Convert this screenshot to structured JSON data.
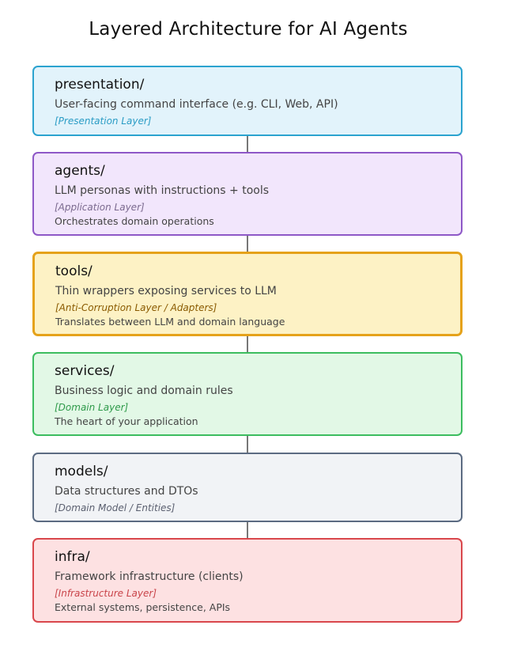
{
  "title": "Layered Architecture for AI Agents",
  "layers": [
    {
      "name": "presentation/",
      "description": "User-facing command interface (e.g. CLI, Web, API)",
      "tag": "[Presentation Layer]",
      "note": "",
      "border_color": "#2ba3cf",
      "fill_color": "#e2f3fb",
      "tag_color": "#2a9cc5"
    },
    {
      "name": "agents/",
      "description": "LLM personas with instructions + tools",
      "tag": "[Application Layer]",
      "note": "Orchestrates domain operations",
      "border_color": "#8e58c7",
      "fill_color": "#f2e6fc",
      "tag_color": "#7b6a8f"
    },
    {
      "name": "tools/",
      "description": "Thin wrappers exposing services to LLM",
      "tag": "[Anti-Corruption Layer / Adapters]",
      "note": "Translates between LLM and domain language",
      "border_color": "#e5a21a",
      "fill_color": "#fdf2c5",
      "tag_color": "#8a5a00"
    },
    {
      "name": "services/",
      "description": "Business logic and domain rules",
      "tag": "[Domain Layer]",
      "note": "The heart of your application",
      "border_color": "#3cbd5f",
      "fill_color": "#e2f8e6",
      "tag_color": "#2e9a4a"
    },
    {
      "name": "models/",
      "description": "Data structures and DTOs",
      "tag": "[Domain Model / Entities]",
      "note": "",
      "border_color": "#5b6b82",
      "fill_color": "#f1f3f6",
      "tag_color": "#5b6070"
    },
    {
      "name": "infra/",
      "description": "Framework infrastructure (clients)",
      "tag": "[Infrastructure Layer]",
      "note": "External systems, persistence, APIs",
      "border_color": "#d9474c",
      "fill_color": "#fde1e2",
      "tag_color": "#c9444a"
    }
  ]
}
